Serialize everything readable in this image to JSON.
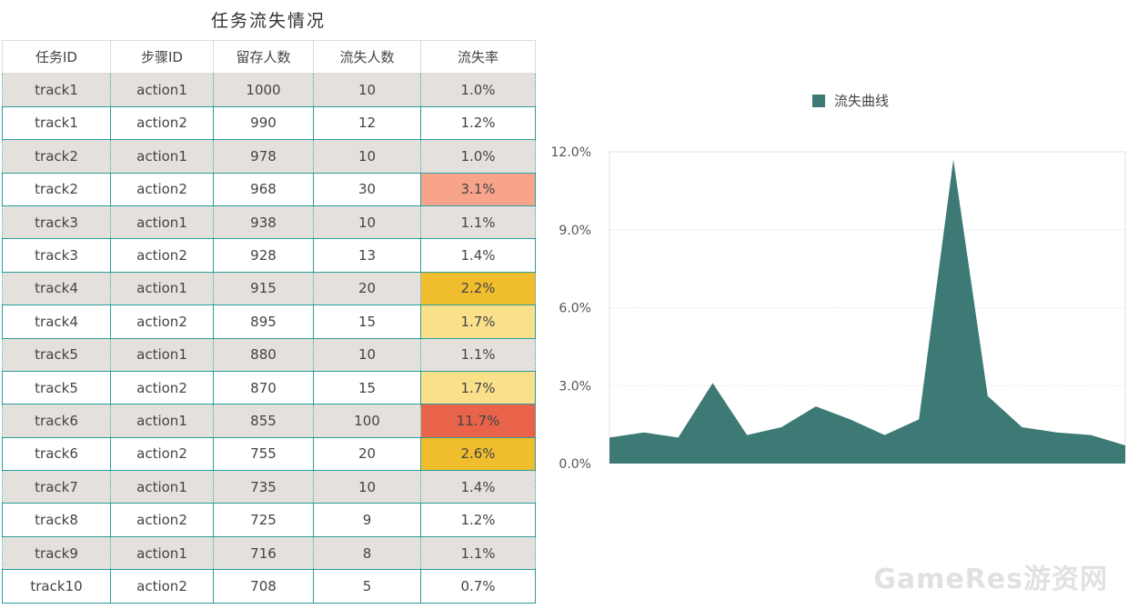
{
  "table": {
    "title": "任务流失情况",
    "headers": [
      "任务ID",
      "步骤ID",
      "留存人数",
      "流失人数",
      "流失率"
    ],
    "rows": [
      {
        "task": "track1",
        "step": "action1",
        "retained": "1000",
        "lost": "10",
        "rate": "1.0%",
        "highlight": ""
      },
      {
        "task": "track1",
        "step": "action2",
        "retained": "990",
        "lost": "12",
        "rate": "1.2%",
        "highlight": ""
      },
      {
        "task": "track2",
        "step": "action1",
        "retained": "978",
        "lost": "10",
        "rate": "1.0%",
        "highlight": ""
      },
      {
        "task": "track2",
        "step": "action2",
        "retained": "968",
        "lost": "30",
        "rate": "3.1%",
        "highlight": "#f7a48a"
      },
      {
        "task": "track3",
        "step": "action1",
        "retained": "938",
        "lost": "10",
        "rate": "1.1%",
        "highlight": ""
      },
      {
        "task": "track3",
        "step": "action2",
        "retained": "928",
        "lost": "13",
        "rate": "1.4%",
        "highlight": ""
      },
      {
        "task": "track4",
        "step": "action1",
        "retained": "915",
        "lost": "20",
        "rate": "2.2%",
        "highlight": "#f0bd2e"
      },
      {
        "task": "track4",
        "step": "action2",
        "retained": "895",
        "lost": "15",
        "rate": "1.7%",
        "highlight": "#fae08a"
      },
      {
        "task": "track5",
        "step": "action1",
        "retained": "880",
        "lost": "10",
        "rate": "1.1%",
        "highlight": ""
      },
      {
        "task": "track5",
        "step": "action2",
        "retained": "870",
        "lost": "15",
        "rate": "1.7%",
        "highlight": "#fae08a"
      },
      {
        "task": "track6",
        "step": "action1",
        "retained": "855",
        "lost": "100",
        "rate": "11.7%",
        "highlight": "#e8634a"
      },
      {
        "task": "track6",
        "step": "action2",
        "retained": "755",
        "lost": "20",
        "rate": "2.6%",
        "highlight": "#f0bd2e"
      },
      {
        "task": "track7",
        "step": "action1",
        "retained": "735",
        "lost": "10",
        "rate": "1.4%",
        "highlight": ""
      },
      {
        "task": "track8",
        "step": "action2",
        "retained": "725",
        "lost": "9",
        "rate": "1.2%",
        "highlight": ""
      },
      {
        "task": "track9",
        "step": "action1",
        "retained": "716",
        "lost": "8",
        "rate": "1.1%",
        "highlight": ""
      },
      {
        "task": "track10",
        "step": "action2",
        "retained": "708",
        "lost": "5",
        "rate": "0.7%",
        "highlight": ""
      }
    ]
  },
  "chart_data": {
    "type": "area",
    "title": "",
    "legend": {
      "label": "流失曲线",
      "placement": "top-center"
    },
    "color": "#3d7a75",
    "ylim": [
      0,
      0.12
    ],
    "yticks": [
      "0.0%",
      "3.0%",
      "6.0%",
      "9.0%",
      "12.0%"
    ],
    "grid": true,
    "series": [
      {
        "name": "流失曲线",
        "values": [
          0.01,
          0.012,
          0.01,
          0.031,
          0.011,
          0.014,
          0.022,
          0.017,
          0.011,
          0.017,
          0.117,
          0.026,
          0.014,
          0.012,
          0.011,
          0.007
        ]
      }
    ]
  },
  "watermark": "GameRes游资网"
}
